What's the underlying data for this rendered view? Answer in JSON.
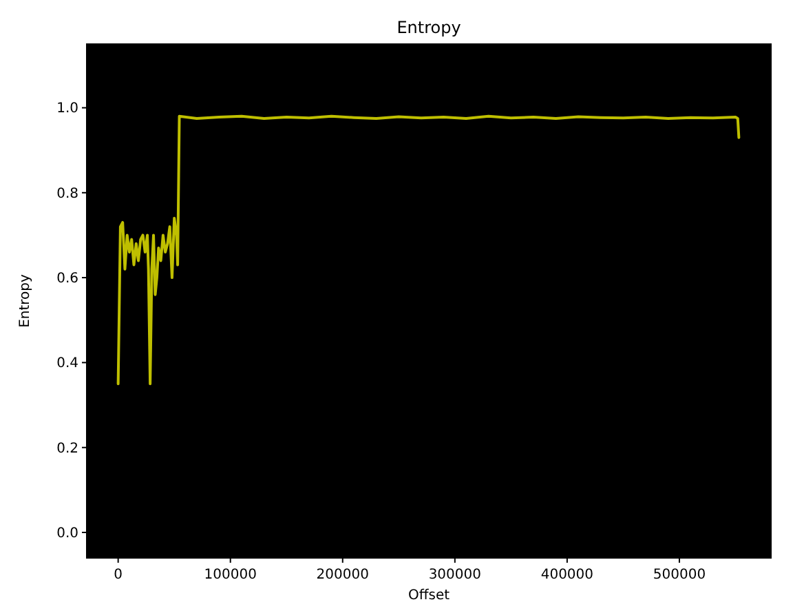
{
  "chart_data": {
    "type": "line",
    "title": "Entropy",
    "xlabel": "Offset",
    "ylabel": "Entropy",
    "xlim": [
      -28000,
      581600
    ],
    "xticks": [
      0,
      100000,
      200000,
      300000,
      400000,
      500000
    ],
    "ylim": [
      -0.06,
      1.15
    ],
    "yticks": [
      {
        "value": 0,
        "label": "0.0"
      },
      {
        "value": 0.2,
        "label": "0.2"
      },
      {
        "value": 0.4,
        "label": "0.4"
      },
      {
        "value": 0.6,
        "label": "0.6"
      },
      {
        "value": 0.8,
        "label": "0.8"
      },
      {
        "value": 1,
        "label": "1.0"
      }
    ],
    "grid": false,
    "marker": "none",
    "line_style": "solid",
    "series": [
      {
        "color": "#bfbf00",
        "x": [
          0,
          2000,
          4000,
          6000,
          8000,
          10000,
          12000,
          14000,
          16000,
          18000,
          20000,
          22000,
          24000,
          26000,
          27000,
          28500,
          30000,
          31500,
          33000,
          34500,
          36000,
          38000,
          40000,
          42000,
          44000,
          46000,
          48000,
          50000,
          52000,
          53000,
          54500,
          70000,
          90000,
          110000,
          130000,
          150000,
          170000,
          190000,
          210000,
          230000,
          250000,
          270000,
          290000,
          310000,
          330000,
          350000,
          370000,
          390000,
          410000,
          430000,
          450000,
          470000,
          490000,
          510000,
          530000,
          550000,
          552000,
          553000
        ],
        "values": [
          0.35,
          0.72,
          0.73,
          0.62,
          0.7,
          0.66,
          0.69,
          0.63,
          0.68,
          0.64,
          0.69,
          0.7,
          0.66,
          0.7,
          0.62,
          0.35,
          0.62,
          0.7,
          0.56,
          0.6,
          0.67,
          0.64,
          0.7,
          0.66,
          0.68,
          0.72,
          0.6,
          0.74,
          0.7,
          0.63,
          0.98,
          0.975,
          0.978,
          0.98,
          0.975,
          0.978,
          0.976,
          0.98,
          0.977,
          0.975,
          0.979,
          0.976,
          0.978,
          0.975,
          0.98,
          0.976,
          0.978,
          0.975,
          0.979,
          0.977,
          0.976,
          0.978,
          0.975,
          0.977,
          0.976,
          0.978,
          0.975,
          0.93
        ]
      }
    ]
  }
}
